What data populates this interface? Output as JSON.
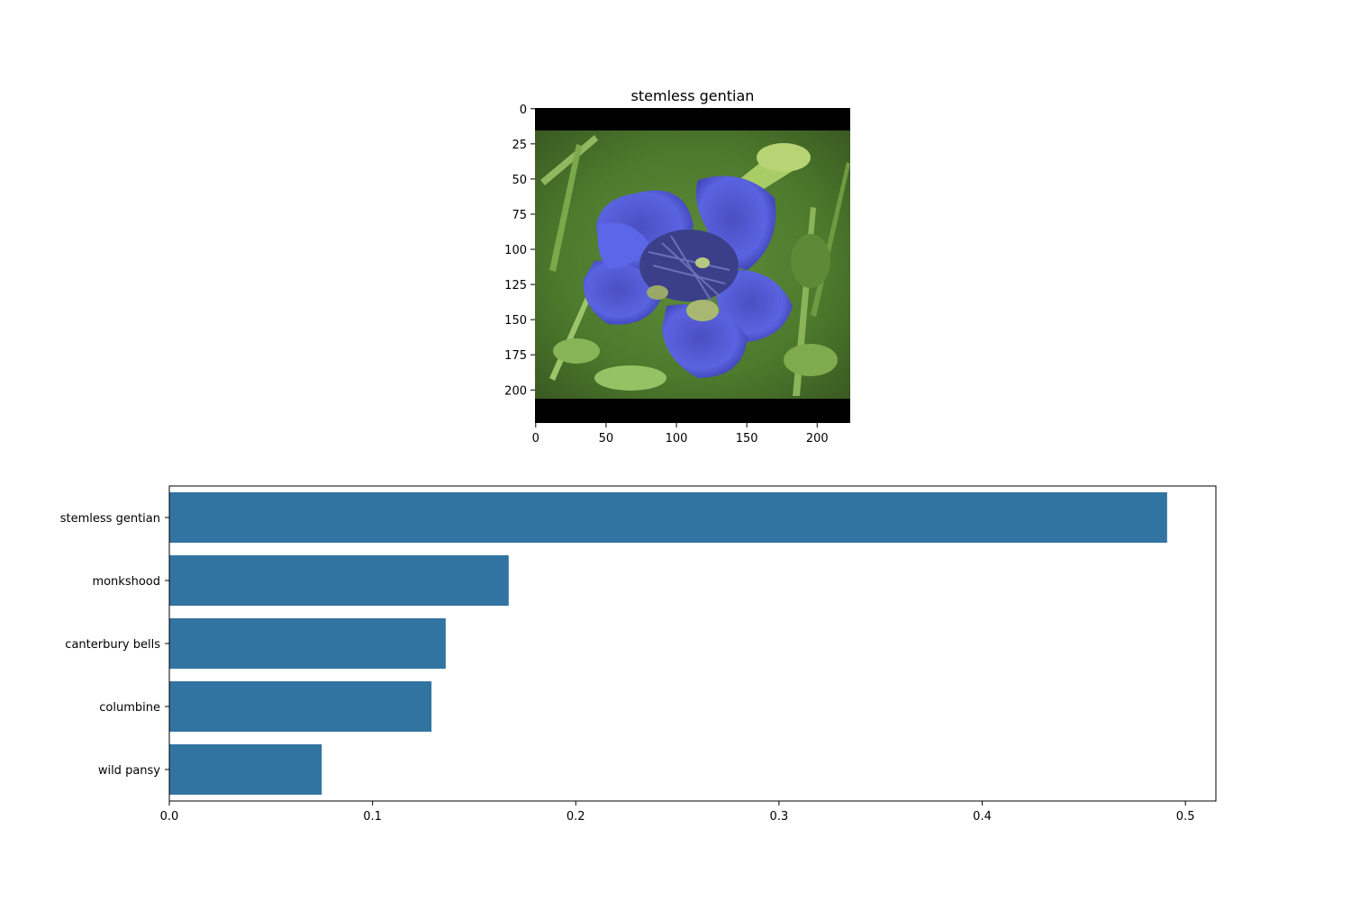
{
  "image_panel": {
    "title": "stemless gentian",
    "x_ticks": [
      0,
      50,
      100,
      150,
      200
    ],
    "y_ticks": [
      0,
      25,
      50,
      75,
      100,
      125,
      150,
      175,
      200
    ],
    "x_range": [
      0,
      224
    ],
    "y_range": [
      0,
      224
    ],
    "content": "flower-photo"
  },
  "chart_data": {
    "type": "bar",
    "orientation": "horizontal",
    "categories": [
      "stemless gentian",
      "monkshood",
      "canterbury bells",
      "columbine",
      "wild pansy"
    ],
    "values": [
      0.491,
      0.167,
      0.136,
      0.129,
      0.075
    ],
    "xlim": [
      0,
      0.515
    ],
    "x_ticks": [
      0.0,
      0.1,
      0.2,
      0.3,
      0.4,
      0.5
    ],
    "x_tick_labels": [
      "0.0",
      "0.1",
      "0.2",
      "0.3",
      "0.4",
      "0.5"
    ],
    "xlabel": "",
    "ylabel": "",
    "grid": false,
    "bar_color": "#3274a1"
  }
}
